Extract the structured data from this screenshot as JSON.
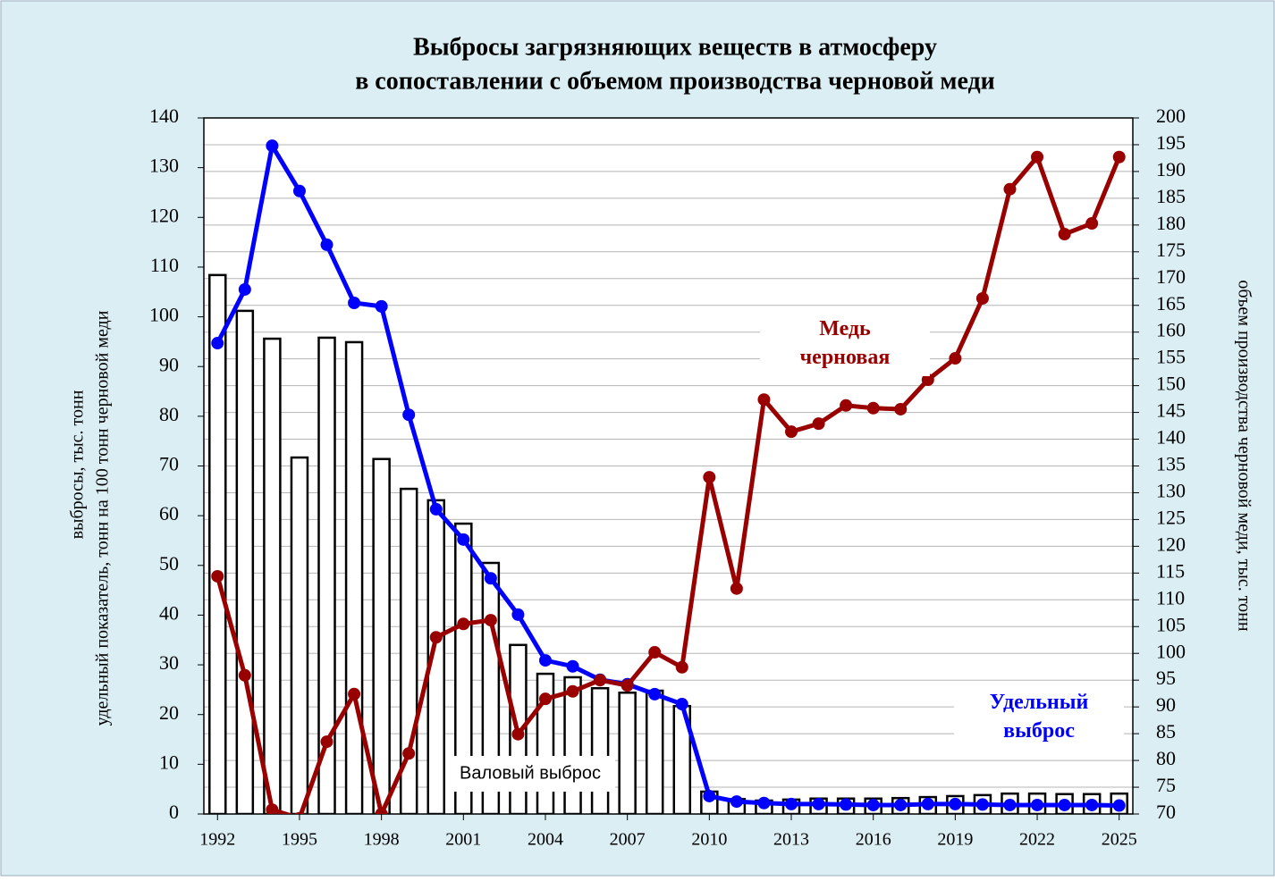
{
  "chart_data": {
    "type": "bar-line",
    "title": [
      "Выбросы загрязняющих  веществ в атмосферу",
      "в сопоставлении с объемом производства черновой меди"
    ],
    "ylabel": [
      "выбросы, тыс. тонн",
      "удельный показатель, тонн на 100 тонн черновой меди"
    ],
    "y2label": "объем производства черновой меди, тыс. тонн",
    "x": [
      1992,
      1993,
      1994,
      1995,
      1996,
      1997,
      1998,
      1999,
      2000,
      2001,
      2002,
      2003,
      2004,
      2005,
      2006,
      2007,
      2008,
      2009,
      2010,
      2011,
      2012,
      2013,
      2014,
      2015,
      2016,
      2017,
      2018,
      2019,
      2020,
      2021,
      2022,
      2023,
      2024,
      2025
    ],
    "xlim": [
      1991.5,
      2025.5
    ],
    "xticks": [
      1992,
      1995,
      1998,
      2001,
      2004,
      2007,
      2010,
      2013,
      2016,
      2019,
      2022,
      2025
    ],
    "ylim": [
      0,
      140
    ],
    "yticks": [
      0,
      10,
      20,
      30,
      40,
      50,
      60,
      70,
      80,
      90,
      100,
      110,
      120,
      130,
      140
    ],
    "y2lim": [
      70,
      200
    ],
    "y2ticks": [
      70,
      75,
      80,
      85,
      90,
      95,
      100,
      105,
      110,
      115,
      120,
      125,
      130,
      135,
      140,
      145,
      150,
      155,
      160,
      165,
      170,
      175,
      180,
      185,
      190,
      195,
      200
    ],
    "grid": true,
    "series": [
      {
        "name": "Валовый выброс",
        "kind": "bar",
        "color": "#ffffff",
        "values": [
          108.4,
          101.2,
          95.6,
          71.7,
          95.8,
          94.9,
          71.4,
          65.4,
          63.1,
          58.4,
          50.5,
          34.0,
          28.2,
          27.5,
          25.3,
          24.4,
          24.8,
          21.7,
          4.5,
          3.0,
          2.7,
          2.9,
          3.1,
          3.1,
          3.1,
          3.2,
          3.4,
          3.6,
          3.8,
          4.1,
          4.1,
          4.0,
          4.0,
          4.1
        ]
      },
      {
        "name": "Удельный выброс",
        "kind": "line",
        "color": "#0000ff",
        "values": [
          94.7,
          105.5,
          134.4,
          125.3,
          114.5,
          102.8,
          102.1,
          80.3,
          61.3,
          55.2,
          47.4,
          40.1,
          30.9,
          29.7,
          27.0,
          26.1,
          24.1,
          22.1,
          3.6,
          2.5,
          2.2,
          2.0,
          2.0,
          1.9,
          1.8,
          1.8,
          2.0,
          2.0,
          1.9,
          1.8,
          1.8,
          1.8,
          1.8,
          1.7
        ]
      },
      {
        "name": "Медь черновая",
        "kind": "line",
        "axis": "y2",
        "color": "#990000",
        "values": [
          114.4,
          95.9,
          70.8,
          69.2,
          83.5,
          92.4,
          70.0,
          81.3,
          103.0,
          105.5,
          106.2,
          84.9,
          91.5,
          92.9,
          95.0,
          94.0,
          100.2,
          97.4,
          132.9,
          112.1,
          147.4,
          141.4,
          142.9,
          146.3,
          145.8,
          145.6,
          151.1,
          155.1,
          166.3,
          186.7,
          192.7,
          178.3,
          180.3,
          192.7
        ]
      }
    ]
  }
}
